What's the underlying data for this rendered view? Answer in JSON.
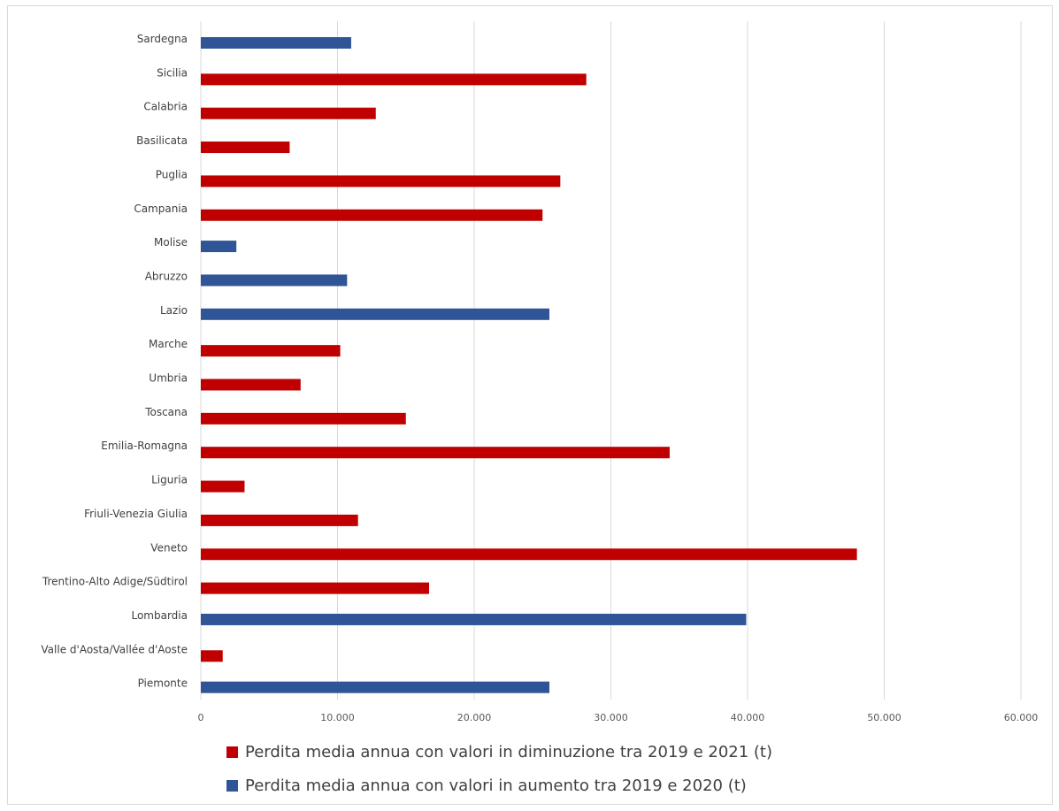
{
  "chart_data": {
    "type": "bar",
    "orientation": "horizontal",
    "categories": [
      "Sardegna",
      "Sicilia",
      "Calabria",
      "Basilicata",
      "Puglia",
      "Campania",
      "Molise",
      "Abruzzo",
      "Lazio",
      "Marche",
      "Umbria",
      "Toscana",
      "Emilia-Romagna",
      "Liguria",
      "Friuli-Venezia Giulia",
      "Veneto",
      "Trentino-Alto Adige/Südtirol",
      "Lombardia",
      "Valle d'Aosta/Vallée d'Aoste",
      "Piemonte"
    ],
    "series": [
      {
        "name": "Perdita media annua con valori in diminuzione tra 2019 e 2021 (t)",
        "color": "#c00000",
        "values": [
          null,
          28200,
          12800,
          6500,
          26300,
          25000,
          null,
          null,
          null,
          10200,
          7300,
          15000,
          34300,
          3200,
          11500,
          48000,
          16700,
          null,
          1600,
          null
        ]
      },
      {
        "name": "Perdita media annua con valori in aumento tra 2019 e 2020 (t)",
        "color": "#2f5597",
        "values": [
          11000,
          null,
          null,
          null,
          null,
          null,
          2600,
          10700,
          25500,
          null,
          null,
          null,
          null,
          null,
          null,
          null,
          null,
          39900,
          null,
          25500
        ]
      }
    ],
    "xlim": [
      0,
      60000
    ],
    "xticks": [
      0,
      10000,
      20000,
      30000,
      40000,
      50000,
      60000
    ],
    "xtick_labels": [
      "0",
      "10.000",
      "20.000",
      "30.000",
      "40.000",
      "50.000",
      "60.000"
    ],
    "grid": true,
    "legend_position": "bottom",
    "title": "",
    "xlabel": "",
    "ylabel": ""
  }
}
